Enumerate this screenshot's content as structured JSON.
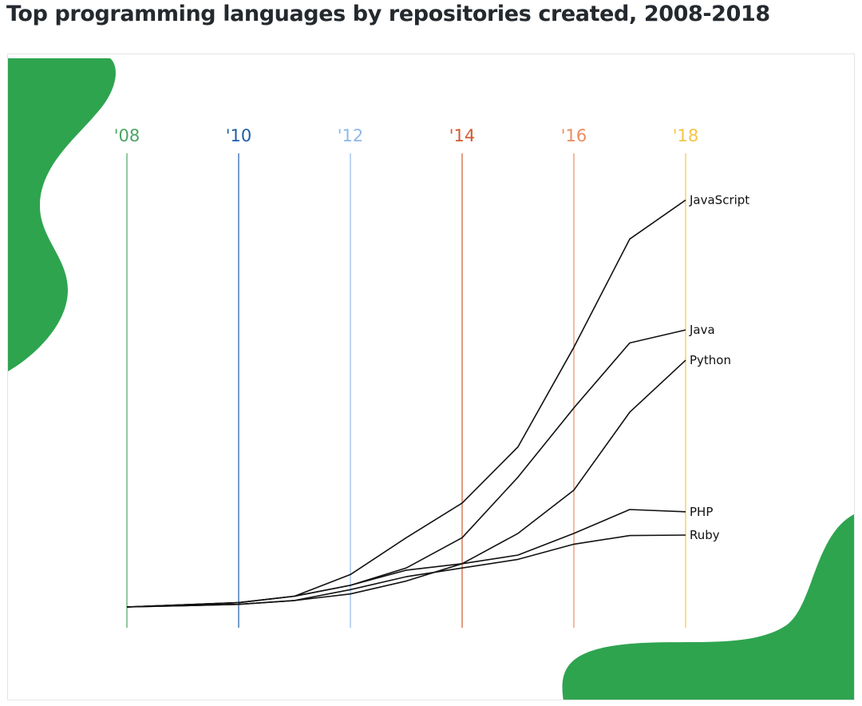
{
  "title": "Top programming languages by repositories created, 2008-2018",
  "colors": {
    "blob": "#2ea44f",
    "line": "#111111",
    "border": "#e1e4e8"
  },
  "chart_data": {
    "type": "line",
    "title": "Top programming languages by repositories created, 2008-2018",
    "x": [
      2008,
      2009,
      2010,
      2011,
      2012,
      2013,
      2014,
      2015,
      2016,
      2017,
      2018
    ],
    "xlim": [
      2008,
      2018
    ],
    "ylim": [
      0,
      100
    ],
    "y_axis_shown": false,
    "year_markers": [
      {
        "year": 2008,
        "label": "'08",
        "color": "#4aa564"
      },
      {
        "year": 2010,
        "label": "'10",
        "color": "#1f5dab"
      },
      {
        "year": 2012,
        "label": "'12",
        "color": "#8fb8e8"
      },
      {
        "year": 2014,
        "label": "'14",
        "color": "#d35a2f"
      },
      {
        "year": 2016,
        "label": "'16",
        "color": "#ec8b5e"
      },
      {
        "year": 2018,
        "label": "'18",
        "color": "#f5c443"
      }
    ],
    "series": [
      {
        "name": "JavaScript",
        "values": [
          0,
          0.5,
          1,
          2.5,
          7.5,
          16,
          24,
          37,
          60,
          85,
          94
        ]
      },
      {
        "name": "Java",
        "values": [
          0,
          0.5,
          1,
          2.5,
          5,
          9,
          16,
          30,
          46,
          61,
          64
        ]
      },
      {
        "name": "Python",
        "values": [
          0,
          0.3,
          0.6,
          1.5,
          3,
          6,
          10,
          17,
          27,
          45,
          57
        ]
      },
      {
        "name": "PHP",
        "values": [
          0,
          0.5,
          1,
          2.5,
          5,
          8.5,
          10,
          12,
          17,
          22.5,
          22
        ]
      },
      {
        "name": "Ruby",
        "values": [
          0,
          0.3,
          0.6,
          1.5,
          4,
          7,
          9,
          11,
          14.5,
          16.5,
          16.6
        ]
      }
    ]
  }
}
